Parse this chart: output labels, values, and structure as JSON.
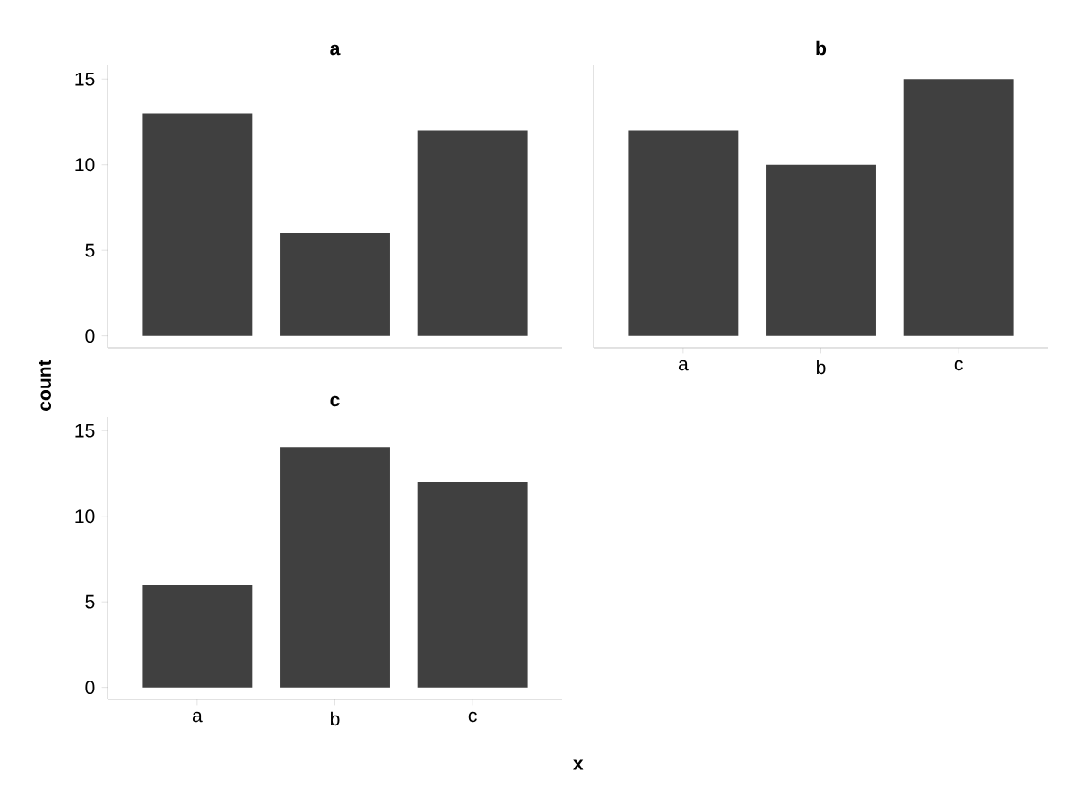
{
  "chart_data": [
    {
      "type": "bar",
      "title": "a",
      "categories": [
        null,
        null,
        null
      ],
      "values": [
        13,
        6,
        12
      ],
      "color": "#404040",
      "ylim": [
        -0.7,
        15.8
      ],
      "yticks": [
        0,
        5,
        10,
        15
      ],
      "tick_labels": "y"
    },
    {
      "type": "bar",
      "title": "b",
      "categories": [
        "a",
        "b",
        "c"
      ],
      "values": [
        12,
        10,
        15
      ],
      "color": "#404040",
      "ylim": [
        -0.7,
        15.8
      ],
      "tick_labels": "x"
    },
    {
      "type": "bar",
      "title": "c",
      "categories": [
        "a",
        "b",
        "c"
      ],
      "values": [
        6,
        14,
        12
      ],
      "color": "#404040",
      "ylim": [
        -0.7,
        15.8
      ],
      "yticks": [
        0,
        5,
        10,
        15
      ],
      "xlabel": "x",
      "ylabel": "count"
    }
  ]
}
